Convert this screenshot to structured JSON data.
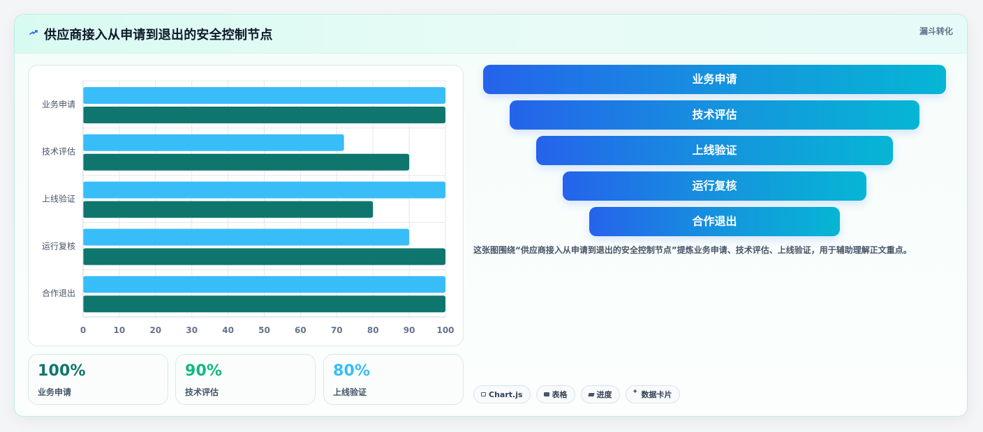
{
  "header": {
    "title": "供应商接入从申请到退出的安全控制节点",
    "corner_label": "漏斗转化",
    "icon": "spark-icon"
  },
  "chart_data": {
    "type": "bar",
    "orientation": "horizontal",
    "categories": [
      "业务申请",
      "技术评估",
      "上线验证",
      "运行复核",
      "合作退出"
    ],
    "series": [
      {
        "values": [
          100,
          72,
          100,
          90,
          100
        ],
        "color": "#38bdf8"
      },
      {
        "values": [
          100,
          90,
          80,
          100,
          100
        ],
        "color": "#0f766e"
      }
    ],
    "xlim": [
      0,
      100
    ],
    "x_ticks": [
      0,
      10,
      20,
      30,
      40,
      50,
      60,
      70,
      80,
      90,
      100
    ],
    "grid": true,
    "legend": "none"
  },
  "metrics": [
    {
      "value": "100%",
      "label": "业务申请",
      "color": "#0f766e"
    },
    {
      "value": "90%",
      "label": "技术评估",
      "color": "#10b981"
    },
    {
      "value": "80%",
      "label": "上线验证",
      "color": "#38bdf8"
    }
  ],
  "funnel": {
    "steps": [
      "业务申请",
      "技术评估",
      "上线验证",
      "运行复核",
      "合作退出"
    ],
    "colors": [
      "#2563eb",
      "#06b6d4"
    ]
  },
  "description": "这张图围绕“供应商接入从申请到退出的安全控制节点”提炼业务申请、技术评估、上线验证，用于辅助理解正文重点。",
  "tags": [
    {
      "icon": "chart-icon",
      "label": "Chart.js"
    },
    {
      "icon": "table-icon",
      "label": "表格"
    },
    {
      "icon": "progress-icon",
      "label": "进度"
    },
    {
      "icon": "star-icon",
      "label": "数据卡片"
    }
  ]
}
